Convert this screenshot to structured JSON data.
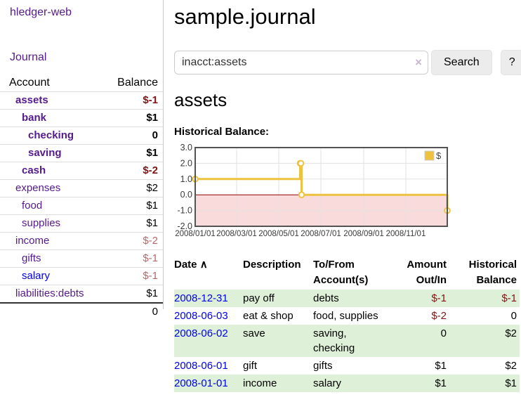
{
  "app": {
    "title": "hledger-web",
    "nav_journal": "Journal"
  },
  "colors": {
    "link_purple": "#551a8b",
    "link_blue": "#0000ee",
    "negative_strong": "#801515",
    "negative_muted": "#b36a6a",
    "row_stripe_green": "#dff0d8",
    "series_gold": "#edc240",
    "negative_region_pink": "#fadbdb",
    "zero_line_red": "#8b0000"
  },
  "sidebar": {
    "headers": {
      "account": "Account",
      "balance": "Balance"
    },
    "accounts": [
      {
        "name": "assets",
        "indent": 0,
        "bold": true,
        "balance": "$-1",
        "balance_style": "neg-strong"
      },
      {
        "name": "bank",
        "indent": 1,
        "bold": true,
        "balance": "$1",
        "balance_style": "strong"
      },
      {
        "name": "checking",
        "indent": 2,
        "bold": true,
        "balance": "0",
        "balance_style": "strong"
      },
      {
        "name": "saving",
        "indent": 2,
        "bold": true,
        "balance": "$1",
        "balance_style": "strong"
      },
      {
        "name": "cash",
        "indent": 1,
        "bold": true,
        "balance": "$-2",
        "balance_style": "neg-strong"
      },
      {
        "name": "expenses",
        "indent": 0,
        "bold": false,
        "balance": "$2",
        "balance_style": "plain"
      },
      {
        "name": "food",
        "indent": 1,
        "bold": false,
        "balance": "$1",
        "balance_style": "plain"
      },
      {
        "name": "supplies",
        "indent": 1,
        "bold": false,
        "balance": "$1",
        "balance_style": "plain"
      },
      {
        "name": "income",
        "indent": 0,
        "bold": false,
        "balance": "$-2",
        "balance_style": "neg-muted"
      },
      {
        "name": "gifts",
        "indent": 1,
        "bold": false,
        "balance": "$-1",
        "balance_style": "neg-muted"
      },
      {
        "name": "salary",
        "indent": 1,
        "bold": false,
        "link_color": "blue",
        "balance": "$-1",
        "balance_style": "neg-muted"
      },
      {
        "name": "liabilities:debts",
        "indent": 0,
        "bold": false,
        "balance": "$1",
        "balance_style": "plain"
      }
    ],
    "total": "0"
  },
  "header": {
    "title": "sample.journal"
  },
  "search": {
    "value": "inacct:assets",
    "clear_icon": "×",
    "button_label": "Search",
    "help_label": "?"
  },
  "account_page": {
    "heading": "assets",
    "section_label": "Historical Balance:"
  },
  "chart_data": {
    "type": "line",
    "title": "Historical Balance",
    "step": true,
    "x_range_days": [
      0,
      365
    ],
    "ylim": [
      -2,
      3
    ],
    "y_ticks": [
      3.0,
      2.0,
      1.0,
      0.0,
      -1.0,
      -2.0
    ],
    "x_ticks": [
      {
        "label": "2008/01/01",
        "day": 0
      },
      {
        "label": "2008/03/01",
        "day": 60
      },
      {
        "label": "2008/05/01",
        "day": 121
      },
      {
        "label": "2008/07/01",
        "day": 182
      },
      {
        "label": "2008/09/01",
        "day": 244
      },
      {
        "label": "2008/11/01",
        "day": 305
      }
    ],
    "series": [
      {
        "name": "$",
        "color": "#edc240",
        "points": [
          {
            "date": "2008-01-01",
            "day": 0,
            "value": 1
          },
          {
            "date": "2008-06-01",
            "day": 152,
            "value": 2
          },
          {
            "date": "2008-06-02",
            "day": 153,
            "value": 2
          },
          {
            "date": "2008-06-03",
            "day": 154,
            "value": 0
          },
          {
            "date": "2008-12-31",
            "day": 365,
            "value": -1
          }
        ]
      }
    ],
    "legend": {
      "label": "$",
      "position": "top-right"
    },
    "grid": true,
    "negative_region_fill": "#fadbdb",
    "zero_line_color": "#8b0000"
  },
  "register": {
    "headers": {
      "date": "Date",
      "sort_icon": "∧",
      "description": "Description",
      "account_line1": "To/From",
      "account_line2": "Account(s)",
      "amount_line1": "Amount",
      "amount_line2": "Out/In",
      "balance_line1": "Historical",
      "balance_line2": "Balance"
    },
    "rows": [
      {
        "date": "2008-12-31",
        "description": "pay off",
        "accounts": "debts",
        "amount": "$-1",
        "amount_neg": true,
        "balance": "$-1",
        "balance_neg": true
      },
      {
        "date": "2008-06-03",
        "description": "eat & shop",
        "accounts": "food, supplies",
        "amount": "$-2",
        "amount_neg": true,
        "balance": "0",
        "balance_neg": false
      },
      {
        "date": "2008-06-02",
        "description": "save",
        "accounts": "saving, checking",
        "amount": "0",
        "amount_neg": false,
        "balance": "$2",
        "balance_neg": false
      },
      {
        "date": "2008-06-01",
        "description": "gift",
        "accounts": "gifts",
        "amount": "$1",
        "amount_neg": false,
        "balance": "$2",
        "balance_neg": false
      },
      {
        "date": "2008-01-01",
        "description": "income",
        "accounts": "salary",
        "amount": "$1",
        "amount_neg": false,
        "balance": "$1",
        "balance_neg": false
      }
    ]
  }
}
